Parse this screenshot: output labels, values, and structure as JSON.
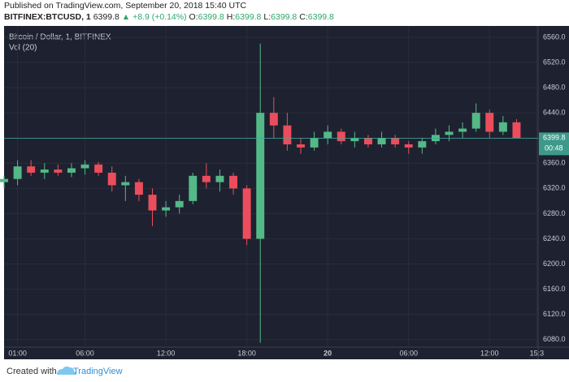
{
  "header": {
    "published": "Published on TradingView.com, September 20, 2018 15:40 UTC",
    "symbol": "BITFINEX:BTCUSD, 1",
    "price": "6399.8",
    "arrow": "▲",
    "change": "+8.9 (+0.14%)",
    "ohlc": [
      {
        "label": "O:",
        "value": "6399.8"
      },
      {
        "label": "H:",
        "value": "6399.8"
      },
      {
        "label": "L:",
        "value": "6399.8"
      },
      {
        "label": "C:",
        "value": "6399.8"
      }
    ]
  },
  "chart_data": {
    "type": "candlestick",
    "title": "Bitcoin / Dollar, 1, BITFINEX",
    "volume_label": "Vol (20)",
    "last_price": 6399.8,
    "countdown": "00:48",
    "up_color": "#53b987",
    "down_color": "#eb4d5c",
    "grid": true,
    "x": [
      0,
      1,
      2,
      3,
      4,
      5,
      6,
      7,
      8,
      9,
      10,
      11,
      12,
      13,
      14,
      15,
      16,
      17,
      18,
      19,
      20,
      21,
      22,
      23,
      24,
      25,
      26,
      27,
      28,
      29,
      30,
      31,
      32,
      33,
      34,
      35,
      36,
      37,
      38
    ],
    "open": [
      6330,
      6335,
      6355,
      6345,
      6350,
      6345,
      6352,
      6358,
      6345,
      6325,
      6330,
      6310,
      6285,
      6290,
      6300,
      6340,
      6330,
      6340,
      6320,
      6240,
      6440,
      6420,
      6390,
      6385,
      6400,
      6410,
      6395,
      6400,
      6390,
      6400,
      6390,
      6385,
      6395,
      6405,
      6410,
      6415,
      6440,
      6410,
      6425
    ],
    "high": [
      6340,
      6365,
      6365,
      6360,
      6358,
      6360,
      6365,
      6362,
      6355,
      6340,
      6335,
      6320,
      6300,
      6310,
      6345,
      6360,
      6350,
      6345,
      6325,
      6550,
      6465,
      6440,
      6400,
      6410,
      6420,
      6415,
      6410,
      6405,
      6410,
      6405,
      6395,
      6400,
      6415,
      6420,
      6425,
      6455,
      6445,
      6435,
      6430
    ],
    "low": [
      6320,
      6325,
      6340,
      6335,
      6340,
      6338,
      6342,
      6340,
      6315,
      6300,
      6300,
      6260,
      6275,
      6280,
      6295,
      6320,
      6315,
      6310,
      6230,
      6075,
      6400,
      6380,
      6375,
      6380,
      6390,
      6390,
      6385,
      6385,
      6385,
      6385,
      6375,
      6375,
      6390,
      6395,
      6400,
      6410,
      6400,
      6405,
      6400
    ],
    "close": [
      6335,
      6355,
      6345,
      6350,
      6345,
      6352,
      6358,
      6345,
      6325,
      6330,
      6310,
      6285,
      6290,
      6300,
      6340,
      6330,
      6340,
      6320,
      6240,
      6440,
      6420,
      6390,
      6385,
      6400,
      6410,
      6395,
      6400,
      6390,
      6400,
      6390,
      6385,
      6395,
      6405,
      6410,
      6415,
      6440,
      6410,
      6425,
      6399.8
    ],
    "xlim": [
      0,
      39.6
    ],
    "ylim": [
      6068,
      6578
    ],
    "xticks": [
      {
        "value": 1,
        "label": "01:00"
      },
      {
        "value": 6,
        "label": "06:00"
      },
      {
        "value": 12,
        "label": "12:00"
      },
      {
        "value": 18,
        "label": "18:00"
      },
      {
        "value": 24,
        "label": "20"
      },
      {
        "value": 30,
        "label": "06:00"
      },
      {
        "value": 36,
        "label": "12:00"
      },
      {
        "value": 39.5,
        "label": "15:3"
      }
    ],
    "yticks": [
      {
        "value": 6080,
        "label": "6080.0"
      },
      {
        "value": 6120,
        "label": "6120.0"
      },
      {
        "value": 6160,
        "label": "6160.0"
      },
      {
        "value": 6200,
        "label": "6200.0"
      },
      {
        "value": 6240,
        "label": "6240.0"
      },
      {
        "value": 6280,
        "label": "6280.0"
      },
      {
        "value": 6320,
        "label": "6320.0"
      },
      {
        "value": 6360,
        "label": "6360.0"
      },
      {
        "value": 6400,
        "label": "6400.0"
      },
      {
        "value": 6440,
        "label": "6440.0"
      },
      {
        "value": 6480,
        "label": "6480.0"
      },
      {
        "value": 6520,
        "label": "6520.0"
      },
      {
        "value": 6560,
        "label": "6560.0"
      }
    ]
  },
  "footer": {
    "created_with": "Created with",
    "brand": "TradingView"
  }
}
